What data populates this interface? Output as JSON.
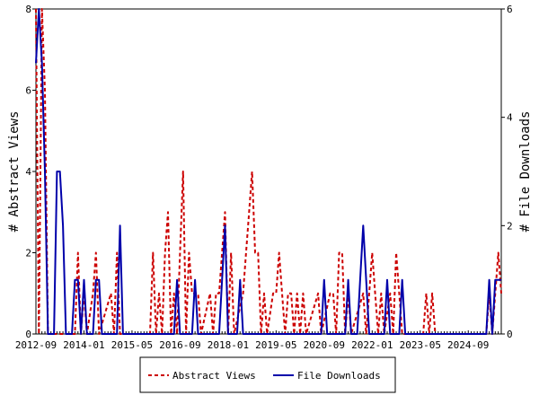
{
  "chart_data": {
    "type": "line",
    "title": "",
    "xlabel": "",
    "ylabel": "# Abstract Views",
    "y2label": "# File Downloads",
    "x_tick_labels": [
      "2012-09",
      "2014-01",
      "2015-05",
      "2016-09",
      "2018-01",
      "2019-05",
      "2020-09",
      "2022-01",
      "2023-05",
      "2024-09"
    ],
    "x_tick_months": [
      0,
      16,
      32,
      48,
      64,
      80,
      96,
      112,
      128,
      144
    ],
    "x_range_months": [
      0,
      155
    ],
    "ylim": [
      0,
      8
    ],
    "y_ticks": [
      0,
      2,
      4,
      6,
      8
    ],
    "y2lim": [
      0,
      6
    ],
    "y2_ticks": [
      0,
      2,
      4,
      6
    ],
    "legend_position": "bottom-center",
    "series": [
      {
        "name": "Abstract Views",
        "axis": "left",
        "color": "#cc0000",
        "style": "dashed",
        "points": [
          [
            0,
            8
          ],
          [
            1,
            0
          ],
          [
            2,
            8
          ],
          [
            3,
            6
          ],
          [
            4,
            0
          ],
          [
            13,
            0
          ],
          [
            14,
            2
          ],
          [
            15,
            0
          ],
          [
            16,
            1
          ],
          [
            17,
            0
          ],
          [
            19,
            1
          ],
          [
            20,
            2
          ],
          [
            21,
            0
          ],
          [
            25,
            1
          ],
          [
            26,
            0
          ],
          [
            27,
            2
          ],
          [
            28,
            0
          ],
          [
            38,
            0
          ],
          [
            39,
            2
          ],
          [
            40,
            0
          ],
          [
            41,
            1
          ],
          [
            42,
            0
          ],
          [
            43,
            2
          ],
          [
            44,
            3
          ],
          [
            45,
            0
          ],
          [
            46,
            1
          ],
          [
            47,
            0
          ],
          [
            48,
            2
          ],
          [
            49,
            4
          ],
          [
            50,
            0
          ],
          [
            51,
            2
          ],
          [
            52,
            1
          ],
          [
            53,
            1
          ],
          [
            54,
            1
          ],
          [
            55,
            0
          ],
          [
            58,
            1
          ],
          [
            59,
            0
          ],
          [
            60,
            1
          ],
          [
            61,
            1
          ],
          [
            62,
            2
          ],
          [
            63,
            3
          ],
          [
            64,
            0
          ],
          [
            65,
            2
          ],
          [
            66,
            0
          ],
          [
            69,
            1
          ],
          [
            70,
            2
          ],
          [
            71,
            3
          ],
          [
            72,
            4
          ],
          [
            73,
            2
          ],
          [
            74,
            2
          ],
          [
            75,
            0
          ],
          [
            76,
            1
          ],
          [
            77,
            0
          ],
          [
            79,
            1
          ],
          [
            80,
            1
          ],
          [
            81,
            2
          ],
          [
            82,
            1
          ],
          [
            83,
            0
          ],
          [
            84,
            1
          ],
          [
            85,
            1
          ],
          [
            86,
            0
          ],
          [
            87,
            1
          ],
          [
            88,
            0
          ],
          [
            89,
            1
          ],
          [
            90,
            0
          ],
          [
            94,
            1
          ],
          [
            95,
            0
          ],
          [
            98,
            1
          ],
          [
            99,
            1
          ],
          [
            100,
            0
          ],
          [
            101,
            2
          ],
          [
            102,
            2
          ],
          [
            103,
            0
          ],
          [
            104,
            1
          ],
          [
            105,
            0
          ],
          [
            109,
            1
          ],
          [
            110,
            0
          ],
          [
            111,
            1
          ],
          [
            112,
            2
          ],
          [
            113,
            1
          ],
          [
            114,
            0
          ],
          [
            115,
            1
          ],
          [
            116,
            0
          ],
          [
            118,
            1
          ],
          [
            119,
            0
          ],
          [
            120,
            2
          ],
          [
            121,
            1
          ],
          [
            122,
            0
          ],
          [
            129,
            0
          ],
          [
            130,
            1
          ],
          [
            131,
            0
          ],
          [
            132,
            1
          ],
          [
            133,
            0
          ],
          [
            150,
            0
          ],
          [
            151,
            1
          ],
          [
            152,
            0
          ],
          [
            153,
            1
          ],
          [
            154,
            2
          ],
          [
            155,
            1
          ]
        ]
      },
      {
        "name": "File Downloads",
        "axis": "right",
        "color": "#0000aa",
        "style": "solid",
        "points": [
          [
            0,
            5
          ],
          [
            1,
            6
          ],
          [
            2,
            5
          ],
          [
            3,
            3
          ],
          [
            4,
            0
          ],
          [
            6,
            0
          ],
          [
            7,
            3
          ],
          [
            8,
            3
          ],
          [
            9,
            2
          ],
          [
            10,
            0
          ],
          [
            12,
            0
          ],
          [
            13,
            1
          ],
          [
            14,
            1
          ],
          [
            15,
            0
          ],
          [
            16,
            1
          ],
          [
            17,
            0
          ],
          [
            19,
            0
          ],
          [
            20,
            1
          ],
          [
            21,
            1
          ],
          [
            22,
            0
          ],
          [
            27,
            0
          ],
          [
            28,
            2
          ],
          [
            29,
            0
          ],
          [
            46,
            0
          ],
          [
            47,
            1
          ],
          [
            48,
            0
          ],
          [
            52,
            0
          ],
          [
            53,
            1
          ],
          [
            54,
            0
          ],
          [
            61,
            0
          ],
          [
            62,
            1
          ],
          [
            63,
            2
          ],
          [
            64,
            0
          ],
          [
            67,
            0
          ],
          [
            68,
            1
          ],
          [
            69,
            0
          ],
          [
            95,
            0
          ],
          [
            96,
            1
          ],
          [
            97,
            0
          ],
          [
            103,
            0
          ],
          [
            104,
            1
          ],
          [
            105,
            0
          ],
          [
            107,
            0
          ],
          [
            108,
            1
          ],
          [
            109,
            2
          ],
          [
            110,
            1
          ],
          [
            111,
            0
          ],
          [
            116,
            0
          ],
          [
            117,
            1
          ],
          [
            118,
            0
          ],
          [
            121,
            0
          ],
          [
            122,
            1
          ],
          [
            123,
            0
          ],
          [
            150,
            0
          ],
          [
            151,
            1
          ],
          [
            152,
            0
          ],
          [
            153,
            1
          ],
          [
            154,
            1
          ],
          [
            155,
            1
          ]
        ]
      }
    ]
  }
}
